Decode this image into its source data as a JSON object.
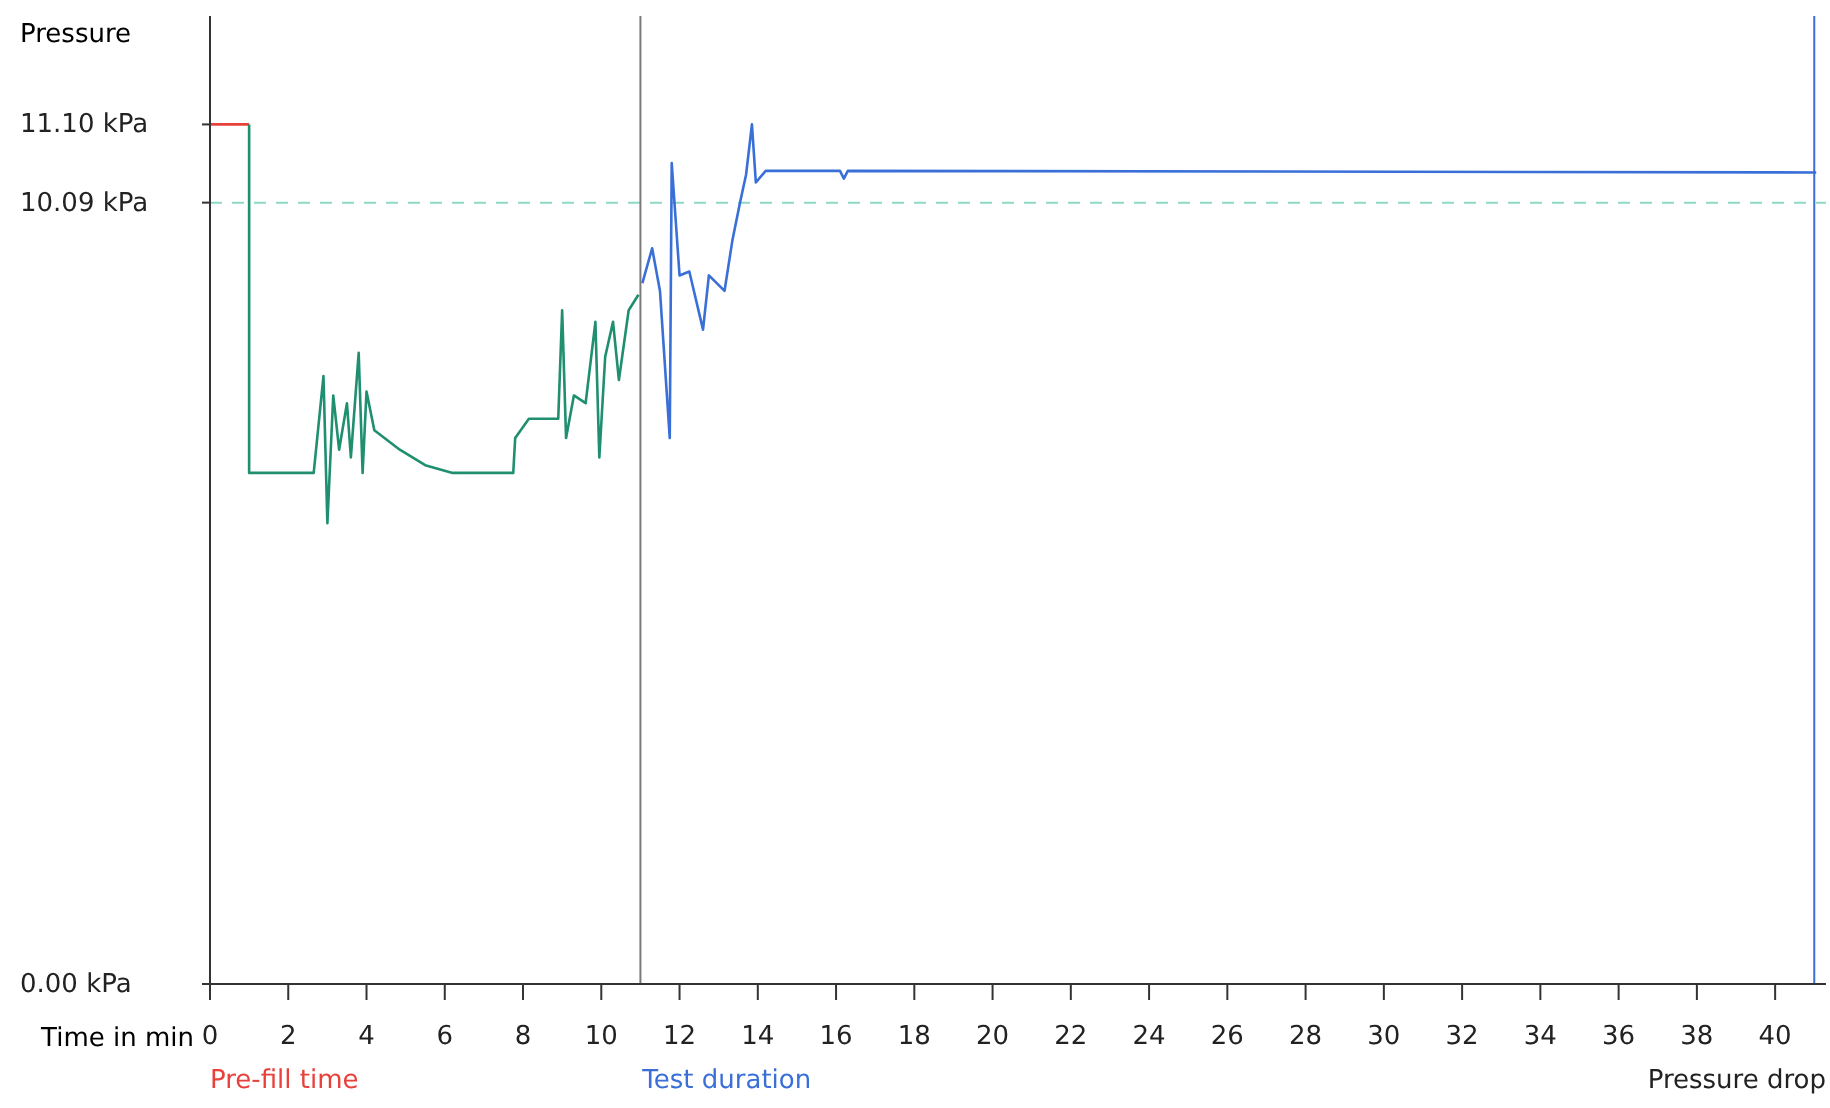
{
  "chart_data": {
    "type": "line",
    "ylabel": "Pressure",
    "xlabel": "Time in min",
    "xlim": [
      0,
      41.3
    ],
    "xticks": [
      0,
      2,
      4,
      6,
      8,
      10,
      12,
      14,
      16,
      18,
      20,
      22,
      24,
      26,
      28,
      30,
      32,
      34,
      36,
      38,
      40
    ],
    "ylim": [
      0,
      12.5
    ],
    "yticks": [
      {
        "value": 0,
        "label": "0.00 kPa"
      },
      {
        "value": 10.09,
        "label": "10.09 kPa"
      },
      {
        "value": 11.1,
        "label": "11.10 kPa"
      }
    ],
    "grid": false,
    "legend": "bottom",
    "marker": "none",
    "line_style": "solid",
    "series": [
      {
        "name": "Pre-fill time",
        "color": "#e8413c",
        "x": [
          0,
          1
        ],
        "values": [
          11.1,
          11.1
        ]
      },
      {
        "color": "#1f8f6f",
        "x": [
          1,
          1,
          2.65,
          2.9,
          3.0,
          3.15,
          3.3,
          3.5,
          3.6,
          3.8,
          3.9,
          4.0,
          4.2,
          4.85,
          5.5,
          6.2,
          7.75,
          7.8,
          8.15,
          8.9,
          9.0,
          9.1,
          9.3,
          9.6,
          9.85,
          9.95,
          10.1,
          10.3,
          10.45,
          10.7,
          10.95
        ],
        "values": [
          11.1,
          6.6,
          6.6,
          7.85,
          5.95,
          7.6,
          6.9,
          7.5,
          6.8,
          8.15,
          6.6,
          7.65,
          7.15,
          6.9,
          6.7,
          6.6,
          6.6,
          7.05,
          7.3,
          7.3,
          8.7,
          7.05,
          7.6,
          7.5,
          8.55,
          6.8,
          8.1,
          8.55,
          7.8,
          8.7,
          8.9
        ]
      },
      {
        "name": "Test duration",
        "color": "#3a6fd8",
        "x": [
          11.05,
          11.3,
          11.5,
          11.75,
          11.8,
          12.0,
          12.25,
          12.6,
          12.75,
          13.15,
          13.35,
          13.55,
          13.7,
          13.85,
          13.95,
          14.2,
          16.1,
          16.2,
          16.3,
          41.05
        ],
        "values": [
          9.05,
          9.5,
          8.95,
          7.05,
          10.6,
          9.15,
          9.2,
          8.45,
          9.15,
          8.95,
          9.6,
          10.1,
          10.45,
          11.1,
          10.35,
          10.5,
          10.5,
          10.4,
          10.5,
          10.48
        ]
      }
    ],
    "ref_lines": [
      {
        "axis": "y",
        "value": 10.09,
        "color": "#8fd8c8",
        "line_style": "dashed"
      },
      {
        "axis": "x",
        "value": 11,
        "color": "#7a7a7a",
        "line_style": "solid"
      },
      {
        "axis": "x",
        "value": 41,
        "color": "#3a6fd8",
        "line_style": "solid"
      }
    ],
    "annotations": [
      "Pressure drop"
    ]
  }
}
